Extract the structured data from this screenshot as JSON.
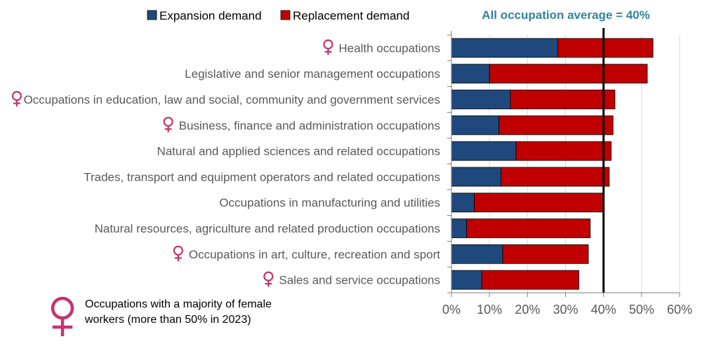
{
  "chart_data": {
    "type": "bar",
    "orientation": "horizontal",
    "stacked": true,
    "categories": [
      "Health occupations",
      "Legislative and senior management occupations",
      "Occupations in education, law and social, community and government services",
      "Business, finance and administration occupations",
      "Natural and applied sciences and related occupations",
      "Trades, transport and equipment operators and related occupations",
      "Occupations in manufacturing and utilities",
      "Natural resources, agriculture and related production occupations",
      "Occupations in art, culture, recreation and sport",
      "Sales and service occupations"
    ],
    "female_majority": [
      true,
      false,
      true,
      true,
      false,
      false,
      false,
      false,
      true,
      true
    ],
    "series": [
      {
        "name": "Expansion demand",
        "color": "#1f497d",
        "values": [
          28,
          10,
          15.5,
          12.5,
          17,
          13,
          6,
          4,
          13.5,
          8
        ]
      },
      {
        "name": "Replacement demand",
        "color": "#c00000",
        "values": [
          25,
          41.5,
          27.5,
          30,
          25,
          28.5,
          34,
          32.5,
          22.5,
          25.5
        ]
      }
    ],
    "xlim": [
      0,
      60
    ],
    "xticks": [
      "0%",
      "10%",
      "20%",
      "30%",
      "40%",
      "50%",
      "60%"
    ],
    "xtick_values": [
      0,
      10,
      20,
      30,
      40,
      50,
      60
    ],
    "reference_line": {
      "value": 40,
      "label": "All occupation average = 40%"
    },
    "legend_position": "top",
    "grid": "vertical",
    "note": {
      "line1": "Occupations with a majority of female",
      "line2": "workers (more than 50% in 2023)"
    },
    "colors": {
      "female_symbol": "#c8326e",
      "grid": "#d9d9d9",
      "axis": "#7f7f7f",
      "avg_label": "#31849b"
    }
  }
}
